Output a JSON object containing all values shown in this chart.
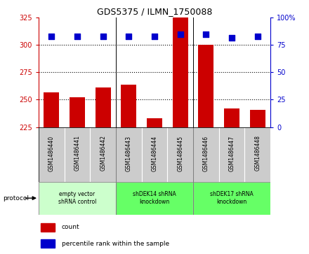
{
  "title": "GDS5375 / ILMN_1750088",
  "samples": [
    "GSM1486440",
    "GSM1486441",
    "GSM1486442",
    "GSM1486443",
    "GSM1486444",
    "GSM1486445",
    "GSM1486446",
    "GSM1486447",
    "GSM1486448"
  ],
  "count_values": [
    257,
    252,
    261,
    264,
    233,
    325,
    300,
    242,
    241
  ],
  "percentile_values": [
    83,
    83,
    83,
    83,
    83,
    85,
    85,
    82,
    83
  ],
  "ylim_left": [
    225,
    325
  ],
  "ylim_right": [
    0,
    100
  ],
  "yticks_left": [
    225,
    250,
    275,
    300,
    325
  ],
  "yticks_right": [
    0,
    25,
    50,
    75,
    100
  ],
  "bar_color": "#cc0000",
  "dot_color": "#0000cc",
  "bar_width": 0.6,
  "dot_size": 30,
  "left_axis_color": "#cc0000",
  "right_axis_color": "#0000cc",
  "protocol_label": "protocol",
  "legend_count_label": "count",
  "legend_pct_label": "percentile rank within the sample",
  "sample_bg_color": "#cccccc",
  "group1_bg": "#ccffcc",
  "group23_bg": "#66ff66",
  "groups": [
    {
      "label": "empty vector\nshRNA control",
      "start": 0,
      "end": 2
    },
    {
      "label": "shDEK14 shRNA\nknockdown",
      "start": 3,
      "end": 5
    },
    {
      "label": "shDEK17 shRNA\nknockdown",
      "start": 6,
      "end": 8
    }
  ]
}
